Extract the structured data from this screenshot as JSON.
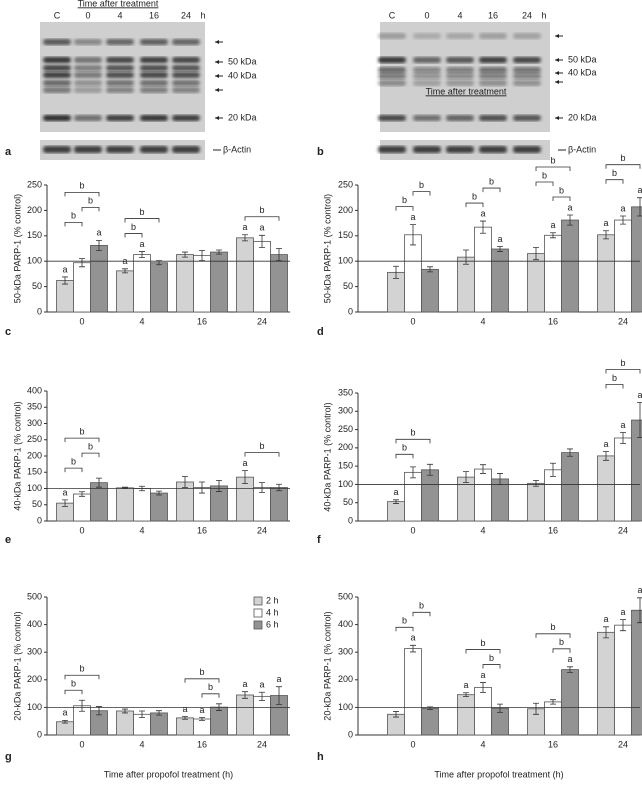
{
  "blots": [
    {
      "panel": "a",
      "header": "Time after treatment",
      "lanes": [
        "C",
        "0",
        "4",
        "16",
        "24",
        "h"
      ],
      "markers": [
        "50 kDa",
        "40 kDa",
        "20 kDa"
      ],
      "actin": "β-Actin"
    },
    {
      "panel": "b",
      "header": "Time after treatment",
      "lanes": [
        "C",
        "0",
        "4",
        "16",
        "24",
        "h"
      ],
      "markers": [
        "50 kDa",
        "40 kDa",
        "20 kDa"
      ],
      "actin": "β-Actin"
    }
  ],
  "chart_data": [
    {
      "type": "bar",
      "panel": "c",
      "ylabel": "50-kDa PARP-1 (% control)",
      "categories": [
        "0",
        "4",
        "16",
        "24"
      ],
      "series": [
        {
          "color": "#d3d3d3",
          "values": [
            62,
            81,
            113,
            146
          ],
          "errors": [
            7,
            4,
            5,
            6
          ],
          "annotations": [
            "a",
            "a",
            null,
            "a"
          ]
        },
        {
          "color": "#ffffff",
          "values": [
            97,
            113,
            111,
            139
          ],
          "errors": [
            8,
            6,
            10,
            12
          ],
          "annotations": [
            null,
            "a",
            null,
            "a"
          ]
        },
        {
          "color": "#939393",
          "values": [
            131,
            97,
            118,
            113
          ],
          "errors": [
            10,
            4,
            4,
            12
          ],
          "annotations": [
            "a",
            null,
            null,
            null
          ]
        }
      ],
      "comparisons": [
        {
          "category": 0,
          "series": [
            0,
            1
          ],
          "label": "b"
        },
        {
          "category": 0,
          "series": [
            1,
            2
          ],
          "label": "b"
        },
        {
          "category": 0,
          "series": [
            0,
            2
          ],
          "label": "b"
        },
        {
          "category": 1,
          "series": [
            0,
            1
          ],
          "label": "b"
        },
        {
          "category": 1,
          "series": [
            0,
            2
          ],
          "label": "b"
        },
        {
          "category": 3,
          "series": [
            0,
            2
          ],
          "label": "b"
        }
      ],
      "ylim": [
        0,
        250
      ],
      "yticks": [
        0,
        50,
        100,
        150,
        200,
        250
      ],
      "reference_line": 100
    },
    {
      "type": "bar",
      "panel": "d",
      "ylabel": "50-kDa PARP-1 (% control)",
      "categories": [
        "0",
        "4",
        "16",
        "24"
      ],
      "series": [
        {
          "color": "#d3d3d3",
          "values": [
            78,
            108,
            115,
            152
          ],
          "errors": [
            12,
            14,
            12,
            8
          ],
          "annotations": [
            null,
            null,
            null,
            "a"
          ]
        },
        {
          "color": "#ffffff",
          "values": [
            152,
            167,
            151,
            181
          ],
          "errors": [
            20,
            12,
            5,
            8
          ],
          "annotations": [
            "a",
            "a",
            "a",
            "a"
          ]
        },
        {
          "color": "#939393",
          "values": [
            84,
            124,
            181,
            207
          ],
          "errors": [
            5,
            5,
            10,
            18
          ],
          "annotations": [
            null,
            "a",
            "a",
            "a"
          ]
        }
      ],
      "comparisons": [
        {
          "category": 0,
          "series": [
            0,
            1
          ],
          "label": "b"
        },
        {
          "category": 0,
          "series": [
            1,
            2
          ],
          "label": "b"
        },
        {
          "category": 1,
          "series": [
            0,
            1
          ],
          "label": "b"
        },
        {
          "category": 1,
          "series": [
            1,
            2
          ],
          "label": "b"
        },
        {
          "category": 2,
          "series": [
            1,
            2
          ],
          "label": "b"
        },
        {
          "category": 2,
          "series": [
            0,
            1
          ],
          "label": "b"
        },
        {
          "category": 2,
          "series": [
            0,
            2
          ],
          "label": "b"
        },
        {
          "category": 3,
          "series": [
            0,
            1
          ],
          "label": "b"
        },
        {
          "category": 3,
          "series": [
            0,
            2
          ],
          "label": "b"
        }
      ],
      "ylim": [
        0,
        250
      ],
      "yticks": [
        0,
        50,
        100,
        150,
        200,
        250
      ],
      "reference_line": 100
    },
    {
      "type": "bar",
      "panel": "e",
      "ylabel": "40-kDa PARP-1 (% control)",
      "categories": [
        "0",
        "4",
        "16",
        "24"
      ],
      "series": [
        {
          "color": "#d3d3d3",
          "values": [
            55,
            102,
            120,
            135
          ],
          "errors": [
            10,
            2,
            17,
            20
          ],
          "annotations": [
            "a",
            null,
            null,
            "a"
          ]
        },
        {
          "color": "#ffffff",
          "values": [
            83,
            100,
            103,
            103
          ],
          "errors": [
            7,
            7,
            17,
            15
          ],
          "annotations": [
            null,
            null,
            null,
            null
          ]
        },
        {
          "color": "#939393",
          "values": [
            118,
            86,
            108,
            103
          ],
          "errors": [
            14,
            6,
            17,
            10
          ],
          "annotations": [
            null,
            null,
            null,
            null
          ]
        }
      ],
      "comparisons": [
        {
          "category": 0,
          "series": [
            0,
            1
          ],
          "label": "b"
        },
        {
          "category": 0,
          "series": [
            1,
            2
          ],
          "label": "b"
        },
        {
          "category": 0,
          "series": [
            0,
            2
          ],
          "label": "b"
        },
        {
          "category": 3,
          "series": [
            0,
            2
          ],
          "label": "b"
        }
      ],
      "ylim": [
        0,
        400
      ],
      "yticks": [
        0,
        50,
        100,
        150,
        200,
        250,
        300,
        350,
        400
      ],
      "reference_line": 100
    },
    {
      "type": "bar",
      "panel": "f",
      "ylabel": "40-kDa PARP-1 (% control)",
      "categories": [
        "0",
        "4",
        "16",
        "24"
      ],
      "series": [
        {
          "color": "#d3d3d3",
          "values": [
            53,
            120,
            103,
            178
          ],
          "errors": [
            5,
            15,
            8,
            12
          ],
          "annotations": [
            "a",
            null,
            null,
            "a"
          ]
        },
        {
          "color": "#ffffff",
          "values": [
            133,
            142,
            140,
            227
          ],
          "errors": [
            15,
            12,
            18,
            15
          ],
          "annotations": [
            null,
            null,
            null,
            "a"
          ]
        },
        {
          "color": "#939393",
          "values": [
            140,
            115,
            187,
            276
          ],
          "errors": [
            15,
            15,
            10,
            48
          ],
          "annotations": [
            null,
            null,
            null,
            "a"
          ]
        }
      ],
      "comparisons": [
        {
          "category": 0,
          "series": [
            0,
            1
          ],
          "label": "b"
        },
        {
          "category": 0,
          "series": [
            0,
            2
          ],
          "label": "b"
        },
        {
          "category": 3,
          "series": [
            0,
            1
          ],
          "label": "b"
        },
        {
          "category": 3,
          "series": [
            0,
            2
          ],
          "label": "b"
        }
      ],
      "ylim": [
        0,
        350
      ],
      "yticks": [
        0,
        50,
        100,
        150,
        200,
        250,
        300,
        350
      ],
      "reference_line": 100
    },
    {
      "type": "bar",
      "panel": "g",
      "ylabel": "20-kDa PARP-1 (% control)",
      "xlabel": "Time after propofol treatment (h)",
      "categories": [
        "0",
        "4",
        "16",
        "24"
      ],
      "legend": "upper right",
      "series": [
        {
          "name": "2 h",
          "color": "#d3d3d3",
          "values": [
            48,
            87,
            62,
            145
          ],
          "errors": [
            5,
            7,
            5,
            12
          ],
          "annotations": [
            "a",
            null,
            "a",
            "a"
          ]
        },
        {
          "name": "4 h",
          "color": "#ffffff",
          "values": [
            106,
            75,
            58,
            140
          ],
          "errors": [
            20,
            12,
            5,
            15
          ],
          "annotations": [
            null,
            null,
            "a",
            "a"
          ]
        },
        {
          "name": "6 h",
          "color": "#939393",
          "values": [
            88,
            80,
            101,
            143
          ],
          "errors": [
            15,
            8,
            12,
            32
          ],
          "annotations": [
            null,
            null,
            null,
            "a"
          ]
        }
      ],
      "comparisons": [
        {
          "category": 0,
          "series": [
            0,
            1
          ],
          "label": "b"
        },
        {
          "category": 0,
          "series": [
            0,
            2
          ],
          "label": "b"
        },
        {
          "category": 2,
          "series": [
            1,
            2
          ],
          "label": "b"
        },
        {
          "category": 2,
          "series": [
            0,
            2
          ],
          "label": "b"
        }
      ],
      "ylim": [
        0,
        500
      ],
      "yticks": [
        0,
        100,
        200,
        300,
        400,
        500
      ],
      "reference_line": 100
    },
    {
      "type": "bar",
      "panel": "h",
      "ylabel": "20-kDa PARP-1 (% control)",
      "xlabel": "Time after propofol treatment (h)",
      "categories": [
        "0",
        "4",
        "16",
        "24"
      ],
      "series": [
        {
          "color": "#d3d3d3",
          "values": [
            75,
            146,
            95,
            372
          ],
          "errors": [
            10,
            7,
            20,
            20
          ],
          "annotations": [
            null,
            "a",
            null,
            "a"
          ]
        },
        {
          "color": "#ffffff",
          "values": [
            313,
            172,
            120,
            398
          ],
          "errors": [
            12,
            18,
            8,
            20
          ],
          "annotations": [
            "a",
            "a",
            null,
            "a"
          ]
        },
        {
          "color": "#939393",
          "values": [
            97,
            97,
            237,
            452
          ],
          "errors": [
            5,
            15,
            10,
            45
          ],
          "annotations": [
            null,
            null,
            "a",
            "a"
          ]
        }
      ],
      "comparisons": [
        {
          "category": 0,
          "series": [
            0,
            1
          ],
          "label": "b"
        },
        {
          "category": 0,
          "series": [
            1,
            2
          ],
          "label": "b"
        },
        {
          "category": 1,
          "series": [
            1,
            2
          ],
          "label": "b"
        },
        {
          "category": 1,
          "series": [
            0,
            2
          ],
          "label": "b"
        },
        {
          "category": 2,
          "series": [
            1,
            2
          ],
          "label": "b"
        },
        {
          "category": 2,
          "series": [
            0,
            2
          ],
          "label": "b"
        }
      ],
      "ylim": [
        0,
        500
      ],
      "yticks": [
        0,
        100,
        200,
        300,
        400,
        500
      ],
      "reference_line": 100
    }
  ]
}
